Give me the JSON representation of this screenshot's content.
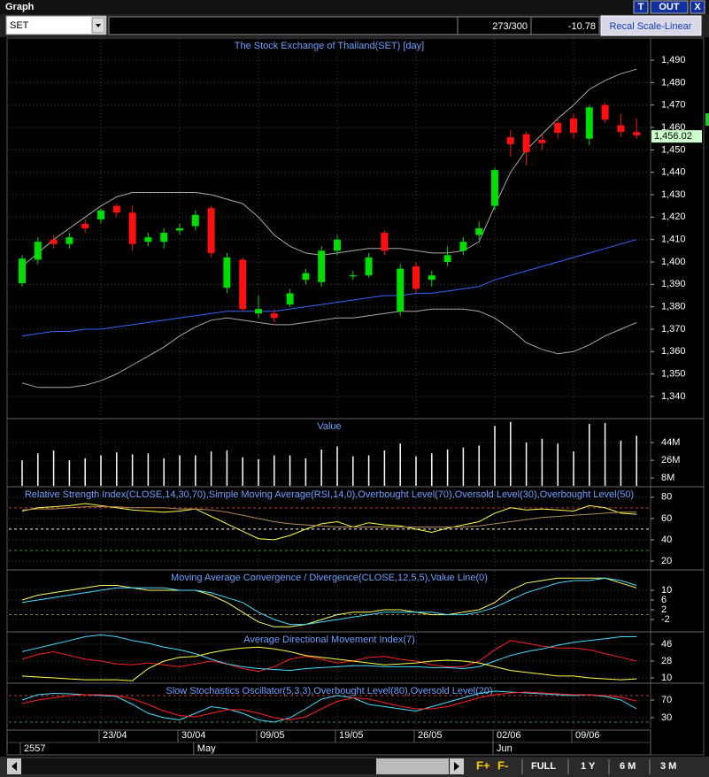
{
  "window": {
    "title": "Graph",
    "buttons": [
      "T",
      "OUT",
      "X"
    ]
  },
  "toolbar": {
    "symbol": "SET",
    "count": "273/300",
    "change": "-10.78",
    "recal": "Recal Scale-Linear"
  },
  "bottom_bar": {
    "buttons": [
      "F+",
      "F-",
      "FULL",
      "1 Y",
      "6 M",
      "3 M"
    ]
  },
  "chart_data": [
    {
      "type": "candlestick",
      "title": "The Stock Exchange of Thailand(SET) [day]",
      "categories": [
        null,
        null,
        null,
        null,
        null,
        "23/04",
        null,
        null,
        null,
        null,
        "30/04",
        null,
        null,
        null,
        null,
        "09/05",
        null,
        null,
        null,
        null,
        "19/05",
        null,
        null,
        null,
        null,
        "26/05",
        null,
        null,
        null,
        null,
        "02/06",
        null,
        null,
        null,
        null,
        "09/06",
        null,
        null,
        null,
        null
      ],
      "periods": [
        "2557",
        null,
        null,
        null,
        null,
        null,
        null,
        null,
        null,
        null,
        null,
        "May",
        null,
        null,
        null,
        null,
        null,
        null,
        null,
        null,
        null,
        null,
        null,
        null,
        null,
        null,
        null,
        null,
        null,
        null,
        "Jun",
        null,
        null,
        null,
        null,
        null,
        null,
        null,
        null,
        null
      ],
      "open": [
        1390.5,
        1401,
        1410,
        1408,
        1417,
        1419,
        1425,
        1422,
        1409,
        1409,
        1414,
        1416,
        1424,
        1388.5,
        1401,
        1377,
        1377,
        1381,
        1392,
        1391,
        1405,
        1393.5,
        1394,
        1413,
        1378,
        1398,
        1392,
        1400,
        1405,
        1412,
        1425,
        1455.6,
        1457,
        1454.5,
        1462,
        1464,
        1455,
        1470,
        1461,
        1458
      ],
      "high": [
        1403,
        1411,
        1412,
        1413,
        1419,
        1424,
        1426,
        1425,
        1413,
        1415,
        1417,
        1423,
        1425,
        1404,
        1402,
        1385,
        1379,
        1388,
        1397,
        1407,
        1412,
        1396,
        1404,
        1414,
        1399,
        1400,
        1396,
        1407,
        1411,
        1418,
        1442,
        1459,
        1458,
        1457,
        1464,
        1466,
        1470,
        1471,
        1466,
        1464
      ],
      "low": [
        1389,
        1399,
        1406,
        1406,
        1413,
        1417,
        1420,
        1405,
        1407,
        1406,
        1412,
        1414,
        1402,
        1386,
        1378,
        1375,
        1373,
        1380,
        1390,
        1389,
        1403,
        1392,
        1393,
        1403,
        1376,
        1386,
        1389,
        1398,
        1403,
        1410,
        1423,
        1447,
        1443,
        1450,
        1455,
        1455,
        1452,
        1462,
        1456,
        1455
      ],
      "close": [
        1401.5,
        1409,
        1408,
        1411,
        1415,
        1423,
        1422,
        1408,
        1411,
        1413,
        1415,
        1421,
        1404,
        1402,
        1379,
        1379,
        1375,
        1386,
        1395,
        1405,
        1410,
        1394,
        1402,
        1405,
        1397,
        1388,
        1394,
        1403,
        1409,
        1415,
        1441,
        1452.5,
        1449,
        1453,
        1457.6,
        1457.6,
        1469,
        1463.5,
        1458,
        1456.5
      ],
      "up_color": "#00dd00",
      "down_color": "#ff1010",
      "overlays": [
        {
          "color": "#aaaaaa",
          "values": [
            1398,
            1404,
            1410,
            1415,
            1420,
            1425,
            1429,
            1431,
            1431,
            1431,
            1431,
            1431,
            1430,
            1428,
            1426,
            1420,
            1412,
            1407,
            1404,
            1403,
            1404,
            1405,
            1406,
            1406,
            1406,
            1405,
            1404,
            1404,
            1405,
            1409,
            1425,
            1440,
            1450,
            1457,
            1464,
            1470,
            1477,
            1481,
            1484,
            1486
          ]
        },
        {
          "color": "#aaaaaa",
          "values": [
            1346,
            1344,
            1344,
            1344,
            1345,
            1347,
            1350,
            1354,
            1358,
            1362,
            1367,
            1371,
            1374,
            1375,
            1374,
            1373,
            1372,
            1372,
            1373,
            1374,
            1375,
            1375,
            1376,
            1377,
            1378,
            1378,
            1379,
            1379,
            1379,
            1378,
            1375,
            1370,
            1364,
            1361,
            1359,
            1360,
            1363,
            1367,
            1370,
            1373
          ]
        },
        {
          "color": "#3366ff",
          "values": [
            1367,
            1368,
            1369,
            1369,
            1370,
            1370,
            1371,
            1372,
            1373,
            1374,
            1375,
            1376,
            1377,
            1378,
            1378,
            1378,
            1378,
            1379,
            1380,
            1381,
            1382,
            1383,
            1384,
            1385,
            1385,
            1386,
            1386,
            1387,
            1388,
            1389,
            1392,
            1394,
            1396,
            1398,
            1400,
            1402,
            1404,
            1406,
            1408,
            1410
          ]
        }
      ],
      "last_price": 1456.02,
      "last_price_label": "1,456.02",
      "ylim": [
        1330.5,
        1499.5
      ],
      "yticks": [
        {
          "value": 1340,
          "label": "1,340"
        },
        {
          "value": 1350,
          "label": "1,350"
        },
        {
          "value": 1360,
          "label": "1,360"
        },
        {
          "value": 1370,
          "label": "1,370"
        },
        {
          "value": 1380,
          "label": "1,380"
        },
        {
          "value": 1390,
          "label": "1,390"
        },
        {
          "value": 1400,
          "label": "1,400"
        },
        {
          "value": 1410,
          "label": "1,410"
        },
        {
          "value": 1420,
          "label": "1,420"
        },
        {
          "value": 1430,
          "label": "1,430"
        },
        {
          "value": 1440,
          "label": "1,440"
        },
        {
          "value": 1450,
          "label": "1,450"
        },
        {
          "value": 1460,
          "label": "1,460"
        },
        {
          "value": 1470,
          "label": "1,470"
        },
        {
          "value": 1480,
          "label": "1,480"
        },
        {
          "value": 1490,
          "label": "1,490"
        }
      ],
      "grid": true
    },
    {
      "type": "bar",
      "title": "Value",
      "color": "#ffffff",
      "values": [
        26,
        33,
        36,
        26,
        28,
        31,
        34,
        32,
        33,
        28,
        31,
        31,
        35,
        36,
        29,
        27,
        31,
        31,
        28,
        37,
        40,
        30,
        31,
        36,
        43,
        30,
        33,
        37,
        39,
        41,
        61,
        65,
        44,
        48,
        43,
        35,
        63,
        64,
        46,
        51
      ],
      "ylim": [
        0,
        67.5
      ],
      "yticks": [
        {
          "value": 8,
          "label": "8M"
        },
        {
          "value": 26,
          "label": "26M"
        },
        {
          "value": 44,
          "label": "44M"
        }
      ],
      "grid": true
    },
    {
      "type": "line",
      "title": "Relative Strength Index(CLOSE,14,30,70),Simple Moving Average(RSI,14,0),Overbought Level(70),Oversold Level(30),Overbought Level(50)",
      "series": [
        {
          "color": "#ffff44",
          "values": [
            67,
            70,
            71,
            72,
            74,
            72,
            70,
            68,
            67,
            66,
            67,
            69,
            62,
            55,
            48,
            41,
            40,
            44,
            50,
            55,
            57,
            52,
            56,
            54,
            53,
            50,
            47,
            51,
            54,
            57,
            65,
            70,
            68,
            69,
            68,
            67,
            72,
            70,
            65,
            64
          ]
        },
        {
          "color": "#b08a50",
          "values": [
            68,
            69,
            69,
            70,
            71,
            71,
            71,
            70,
            70,
            70,
            69,
            69,
            68,
            66,
            63,
            60,
            57,
            55,
            54,
            53,
            52,
            52,
            52,
            52,
            52,
            52,
            52,
            52,
            52,
            53,
            55,
            57,
            59,
            61,
            62,
            63,
            64,
            65,
            66,
            66
          ]
        }
      ],
      "levels": [
        {
          "value": 70,
          "color": "#cc3333"
        },
        {
          "value": 50,
          "color": "#ffffff"
        },
        {
          "value": 30,
          "color": "#339933"
        }
      ],
      "ylim": [
        12.5,
        89
      ],
      "yticks": [
        20,
        40,
        60,
        80
      ],
      "grid": true
    },
    {
      "type": "line",
      "title": "Moving Average Convergence / Divergence(CLOSE,12,5,5),Value Line(0)",
      "series": [
        {
          "color": "#ffff66",
          "values": [
            6,
            8,
            9,
            10,
            11,
            12,
            12,
            11,
            10,
            10,
            10,
            10,
            8,
            5,
            1,
            -3,
            -5,
            -5,
            -4,
            -2,
            0,
            1,
            1,
            2,
            2,
            1,
            0,
            0,
            1,
            2,
            5,
            10,
            13,
            14,
            15,
            15,
            15,
            15,
            13,
            11
          ]
        },
        {
          "color": "#44ddff",
          "values": [
            5,
            6,
            7,
            8,
            9,
            10,
            11,
            11,
            11,
            11,
            10,
            10,
            9,
            7,
            5,
            1,
            -2,
            -4,
            -4,
            -3,
            -2,
            -1,
            0,
            1,
            1,
            1,
            1,
            0,
            0,
            1,
            3,
            6,
            9,
            11,
            13,
            14,
            14,
            15,
            14,
            12
          ]
        }
      ],
      "levels": [
        {
          "value": 0,
          "color": "#888833"
        }
      ],
      "ylim": [
        -6.7,
        18
      ],
      "yticks": [
        -2,
        2,
        6,
        10
      ],
      "grid": true
    },
    {
      "type": "line",
      "title": "Average Directional Movement Index(7)",
      "series": [
        {
          "color": "#ff2020",
          "values": [
            30,
            35,
            38,
            34,
            30,
            28,
            25,
            24,
            26,
            24,
            22,
            25,
            28,
            25,
            20,
            17,
            22,
            30,
            33,
            30,
            26,
            28,
            32,
            33,
            30,
            28,
            24,
            22,
            22,
            28,
            40,
            50,
            47,
            44,
            42,
            42,
            40,
            36,
            32,
            28
          ]
        },
        {
          "color": "#44ddff",
          "values": [
            38,
            42,
            46,
            50,
            54,
            56,
            54,
            50,
            47,
            43,
            40,
            36,
            30,
            25,
            22,
            20,
            19,
            18,
            20,
            21,
            22,
            23,
            23,
            22,
            22,
            22,
            21,
            21,
            20,
            22,
            28,
            34,
            38,
            41,
            45,
            48,
            50,
            52,
            54,
            54
          ]
        },
        {
          "color": "#ffff44",
          "values": [
            12,
            11,
            10,
            9,
            8,
            8,
            8,
            7,
            20,
            28,
            32,
            33,
            37,
            40,
            42,
            43,
            41,
            38,
            34,
            32,
            30,
            28,
            26,
            24,
            25,
            26,
            28,
            29,
            28,
            26,
            22,
            18,
            16,
            14,
            12,
            12,
            10,
            9,
            8,
            9
          ]
        }
      ],
      "levels": [],
      "ylim": [
        5.3,
        58.3
      ],
      "yticks": [
        10,
        28,
        46
      ],
      "grid": true
    },
    {
      "type": "line",
      "title": "Slow Stochastics Oscillator(5,3,3),Overbought Level(80),Oversold Level(20)",
      "series": [
        {
          "color": "#44ddff",
          "values": [
            70,
            82,
            85,
            84,
            82,
            80,
            78,
            60,
            40,
            30,
            25,
            40,
            55,
            50,
            40,
            25,
            20,
            30,
            50,
            72,
            80,
            75,
            60,
            55,
            50,
            45,
            55,
            65,
            75,
            85,
            90,
            88,
            86,
            84,
            82,
            80,
            82,
            78,
            70,
            50
          ]
        },
        {
          "color": "#ff2020",
          "values": [
            62,
            70,
            75,
            80,
            82,
            82,
            80,
            73,
            60,
            45,
            35,
            32,
            40,
            48,
            48,
            40,
            30,
            25,
            32,
            50,
            67,
            75,
            72,
            64,
            56,
            50,
            50,
            55,
            65,
            75,
            82,
            86,
            88,
            86,
            84,
            82,
            82,
            80,
            76,
            68
          ]
        }
      ],
      "levels": [
        {
          "value": 80,
          "color": "#cc3333"
        },
        {
          "value": 20,
          "color": "#339933"
        }
      ],
      "ylim": [
        6,
        106
      ],
      "yticks": [
        30,
        70
      ],
      "grid": true
    }
  ]
}
